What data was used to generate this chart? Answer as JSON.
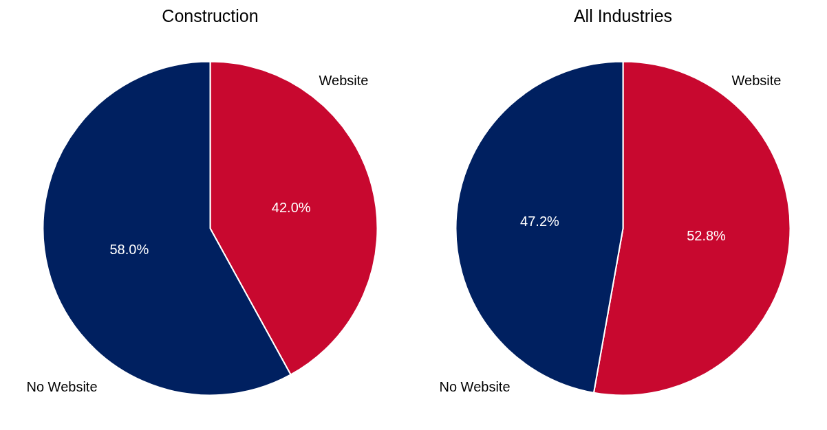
{
  "chart_data": [
    {
      "type": "pie",
      "title": "Construction",
      "categories": [
        "Website",
        "No Website"
      ],
      "values": [
        42.0,
        58.0
      ],
      "colors": [
        "#c8082f",
        "#002060"
      ],
      "value_labels": [
        "42.0%",
        "58.0%"
      ]
    },
    {
      "type": "pie",
      "title": "All Industries",
      "categories": [
        "Website",
        "No Website"
      ],
      "values": [
        52.8,
        47.2
      ],
      "colors": [
        "#c8082f",
        "#002060"
      ],
      "value_labels": [
        "52.8%",
        "47.2%"
      ]
    }
  ]
}
